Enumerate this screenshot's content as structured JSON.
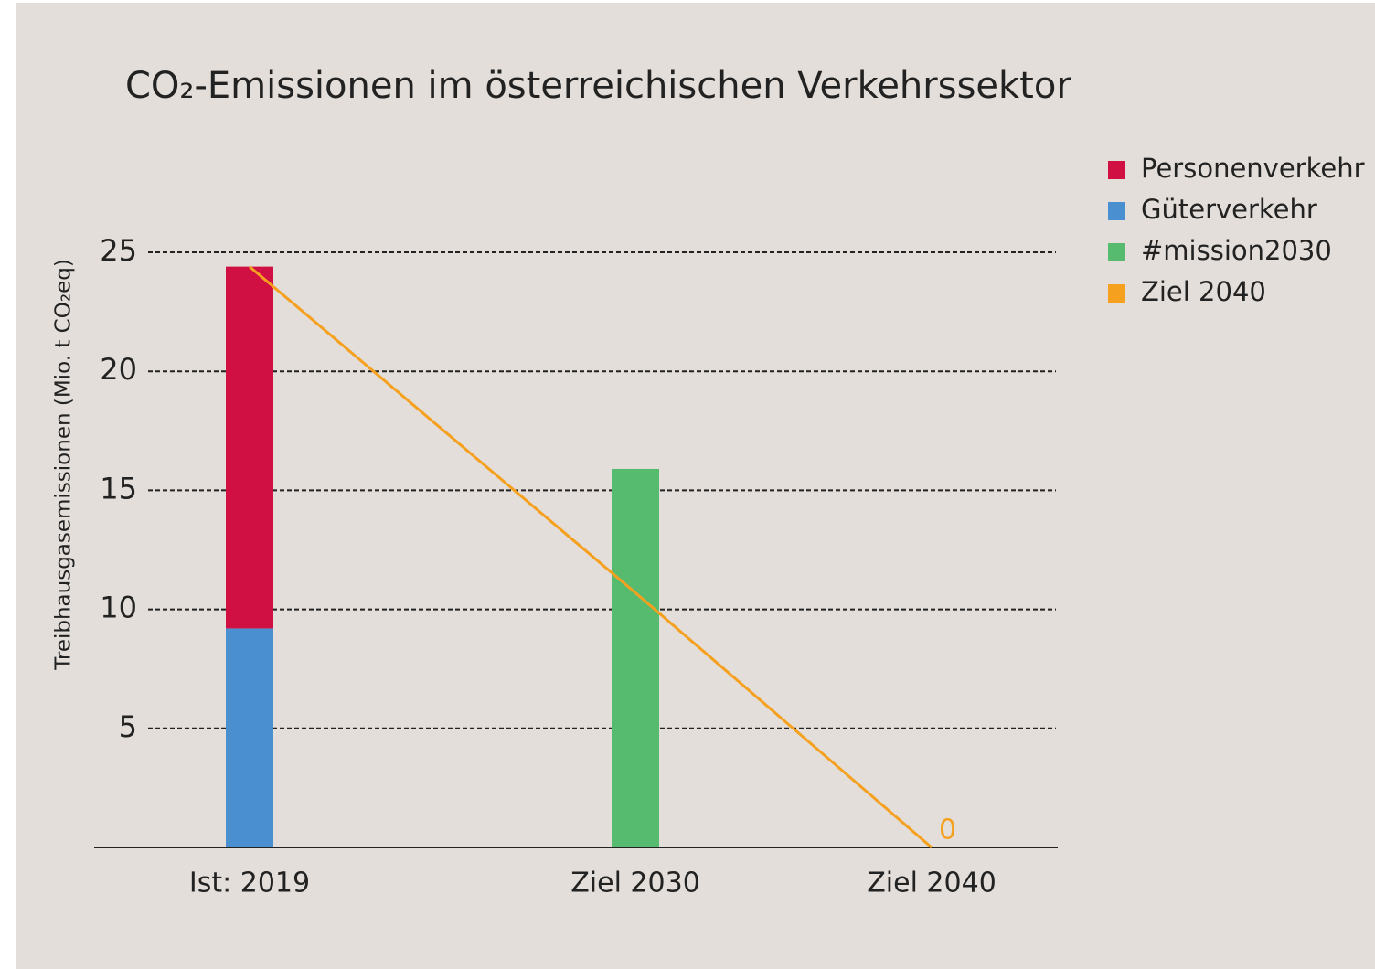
{
  "chart_data": {
    "type": "bar",
    "title": "CO₂-Emissionen im österreichischen Verkehrssektor",
    "y_label": "Treibhausgasemissionen (Mio. t CO₂eq)",
    "categories": [
      "Ist: 2019",
      "Ziel 2030",
      "Ziel 2040"
    ],
    "series": [
      {
        "name": "Personenverkehr",
        "color": "#d01042",
        "type": "bar",
        "stack": true,
        "values": [
          15.2,
          null,
          null
        ]
      },
      {
        "name": "Güterverkehr",
        "color": "#4a8fcf",
        "type": "bar",
        "stack": true,
        "values": [
          9.2,
          null,
          null
        ]
      },
      {
        "name": "#mission2030",
        "color": "#57bb6f",
        "type": "bar",
        "values": [
          null,
          15.9,
          null
        ]
      },
      {
        "name": "Ziel 2040",
        "color": "#f5a01f",
        "type": "line",
        "values": [
          24.4,
          10.7,
          0
        ],
        "value_labels": [
          null,
          null,
          "0"
        ]
      }
    ],
    "ylim": [
      0,
      25
    ],
    "yticks": [
      5,
      10,
      15,
      20,
      25
    ],
    "grid": true,
    "legend": "right"
  }
}
